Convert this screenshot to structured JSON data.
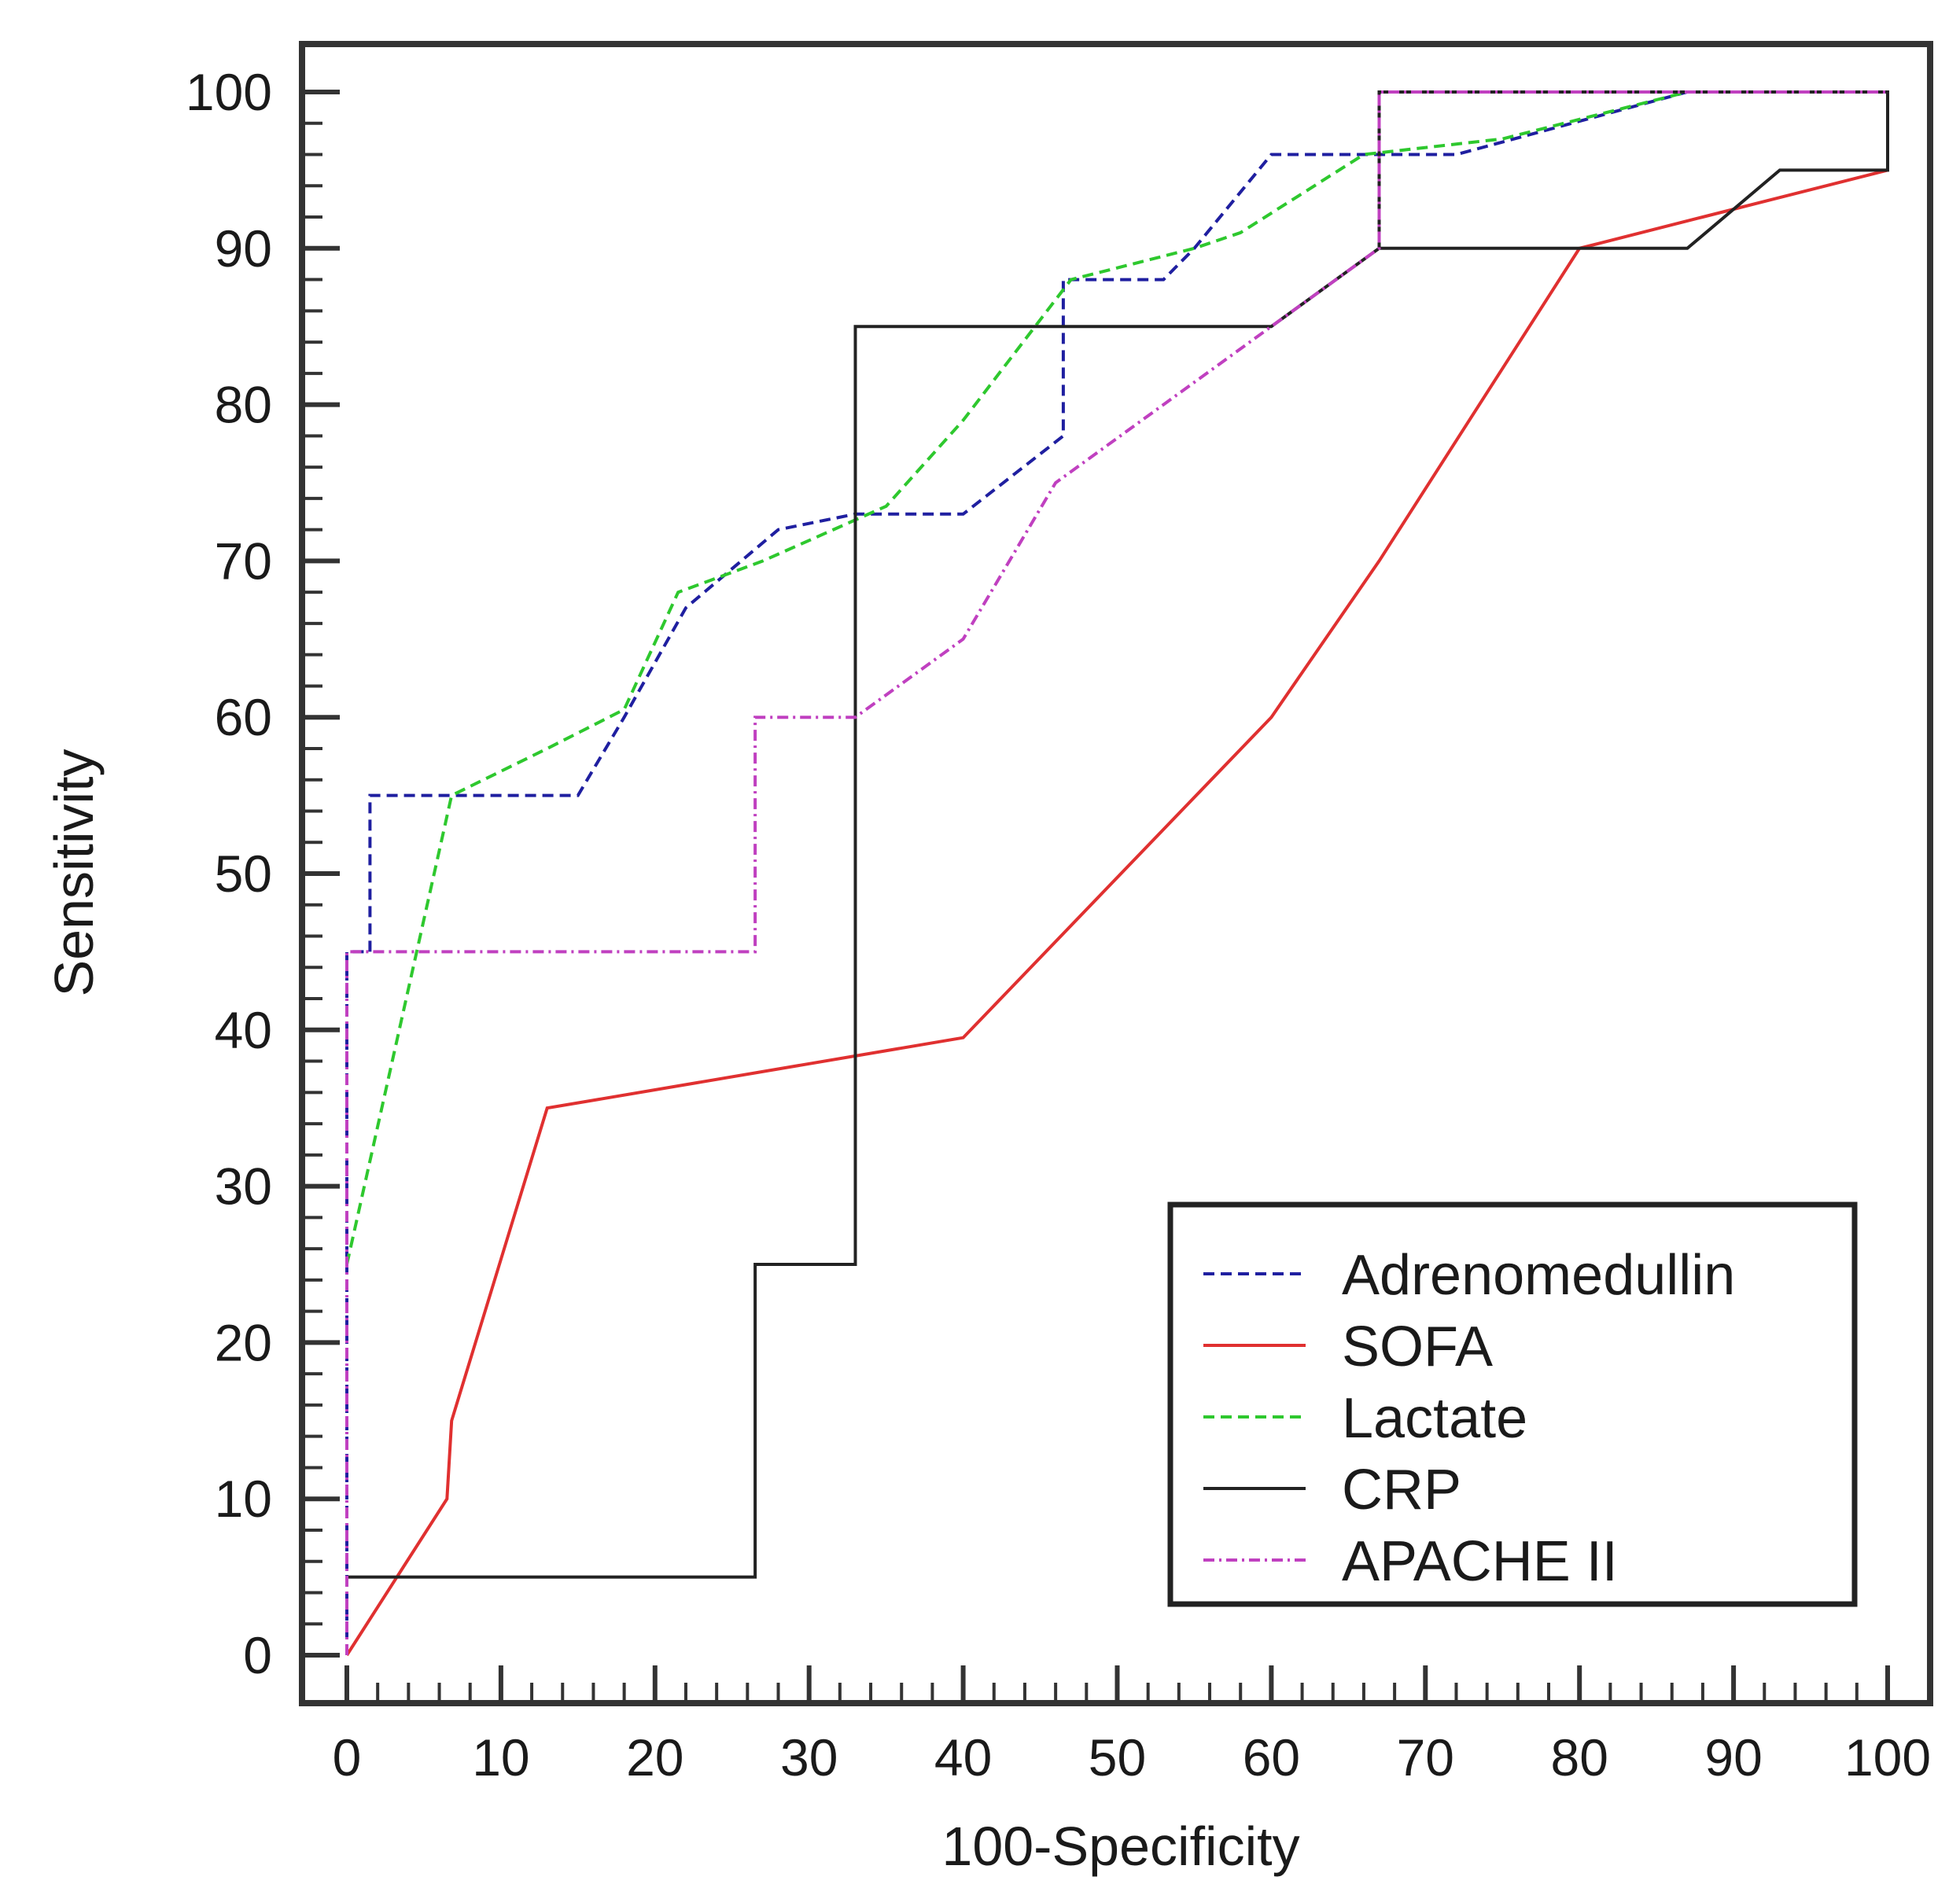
{
  "chart_data": {
    "type": "line",
    "title": "",
    "xlabel": "100-Specificity",
    "ylabel": "Sensitivity",
    "xlim": [
      -3,
      100
    ],
    "ylim": [
      -3,
      103
    ],
    "xticks": [
      "0",
      "10",
      "20",
      "30",
      "40",
      "50",
      "60",
      "70",
      "80",
      "90",
      "100"
    ],
    "yticks": [
      "0",
      "10",
      "20",
      "30",
      "40",
      "50",
      "60",
      "70",
      "80",
      "90",
      "100"
    ],
    "grid": false,
    "legend_position": "bottom-right",
    "series": [
      {
        "name": "Adrenomedullin",
        "color": "#1f1fa0",
        "style": "dashed",
        "points": [
          [
            0,
            0
          ],
          [
            0,
            25
          ],
          [
            0,
            45
          ],
          [
            1.5,
            45
          ],
          [
            1.5,
            55
          ],
          [
            15,
            55
          ],
          [
            18,
            60
          ],
          [
            22,
            67
          ],
          [
            28,
            72
          ],
          [
            33,
            73
          ],
          [
            40,
            73
          ],
          [
            46.5,
            78
          ],
          [
            46.5,
            88
          ],
          [
            53,
            88
          ],
          [
            55,
            90
          ],
          [
            60,
            96
          ],
          [
            72,
            96
          ],
          [
            87,
            100
          ],
          [
            100,
            100
          ]
        ]
      },
      {
        "name": "SOFA",
        "color": "#e03030",
        "style": "solid",
        "points": [
          [
            0,
            0
          ],
          [
            6.5,
            10
          ],
          [
            6.8,
            15
          ],
          [
            13,
            35
          ],
          [
            40,
            39.5
          ],
          [
            60,
            60
          ],
          [
            67,
            70
          ],
          [
            80,
            90
          ],
          [
            88,
            92
          ],
          [
            100,
            95
          ]
        ]
      },
      {
        "name": "Lactate",
        "color": "#2ec82e",
        "style": "dashed",
        "points": [
          [
            0,
            25
          ],
          [
            6.8,
            55
          ],
          [
            13,
            58
          ],
          [
            18,
            60.5
          ],
          [
            21.5,
            68
          ],
          [
            27,
            70
          ],
          [
            35,
            73.5
          ],
          [
            40,
            79
          ],
          [
            47,
            88
          ],
          [
            55,
            90
          ],
          [
            58,
            91
          ],
          [
            66,
            96
          ],
          [
            75,
            97
          ],
          [
            87,
            100
          ],
          [
            100,
            100
          ]
        ]
      },
      {
        "name": "CRP",
        "color": "#222222",
        "style": "solid",
        "points": [
          [
            0,
            5
          ],
          [
            26.5,
            5
          ],
          [
            26.5,
            25
          ],
          [
            33,
            25
          ],
          [
            33,
            85
          ],
          [
            60,
            85
          ],
          [
            67,
            90
          ],
          [
            87,
            90
          ],
          [
            93,
            95
          ],
          [
            100,
            95
          ],
          [
            100,
            100
          ],
          [
            67,
            100
          ],
          [
            67,
            90
          ]
        ]
      },
      {
        "name": "APACHE II",
        "color": "#c040c0",
        "style": "dashdot",
        "points": [
          [
            0,
            0
          ],
          [
            0,
            45
          ],
          [
            26.5,
            45
          ],
          [
            26.5,
            60
          ],
          [
            33,
            60
          ],
          [
            40,
            65
          ],
          [
            46,
            75
          ],
          [
            53,
            80
          ],
          [
            60,
            85
          ],
          [
            67,
            90
          ],
          [
            67,
            100
          ],
          [
            100,
            100
          ]
        ]
      }
    ]
  }
}
